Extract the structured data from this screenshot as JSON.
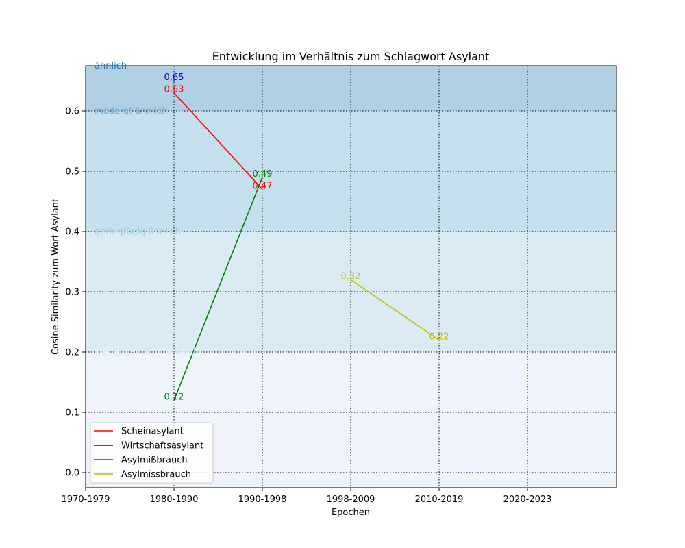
{
  "chart_data": {
    "type": "line",
    "title": "Entwicklung im Verhältnis zum Schlagwort Asylant",
    "xlabel": "Epochen",
    "ylabel": "Cosine Similarity zum Wort Asylant",
    "categories": [
      "1970-1979",
      "1980-1990",
      "1990-1998",
      "1998-2009",
      "2010-2019",
      "2020-2023"
    ],
    "ylim": [
      -0.025,
      0.675
    ],
    "yticks": [
      "0.0",
      "0.1",
      "0.2",
      "0.3",
      "0.4",
      "0.5",
      "0.6"
    ],
    "grid": true,
    "legend_position": "lower-left",
    "bands": [
      {
        "label": "ähnlich",
        "from": 0.6,
        "to": 0.675,
        "color": "#b2d0e4",
        "label_color": "#2171b5"
      },
      {
        "label": "moderat ähnlich",
        "from": 0.4,
        "to": 0.6,
        "color": "#c5dfec",
        "label_color": "#6baed6"
      },
      {
        "label": "geringfügig ähnlich",
        "from": 0.2,
        "to": 0.4,
        "color": "#daebf3",
        "label_color": "#9ecae1"
      },
      {
        "label": "wenig/gar nicht ähnlich",
        "from": -0.025,
        "to": 0.2,
        "color": "#eef4fa",
        "label_color": "#deebf7"
      }
    ],
    "series": [
      {
        "name": "Scheinasylant",
        "color": "#ff0000",
        "points": [
          {
            "x": "1980-1990",
            "y": 0.63,
            "label": "0.63"
          },
          {
            "x": "1990-1998",
            "y": 0.47,
            "label": "0.47"
          }
        ]
      },
      {
        "name": "Wirtschaftsasylant",
        "color": "#0000ff",
        "points": [
          {
            "x": "1980-1990",
            "y": 0.65,
            "label": "0.65"
          }
        ]
      },
      {
        "name": "Asylmißbrauch",
        "color": "#008000",
        "points": [
          {
            "x": "1980-1990",
            "y": 0.12,
            "label": "0.12"
          },
          {
            "x": "1990-1998",
            "y": 0.49,
            "label": "0.49"
          }
        ]
      },
      {
        "name": "Asylmissbrauch",
        "color": "#bfbf00",
        "points": [
          {
            "x": "1998-2009",
            "y": 0.32,
            "label": "0.32"
          },
          {
            "x": "2010-2019",
            "y": 0.22,
            "label": "0.22"
          }
        ]
      }
    ]
  }
}
